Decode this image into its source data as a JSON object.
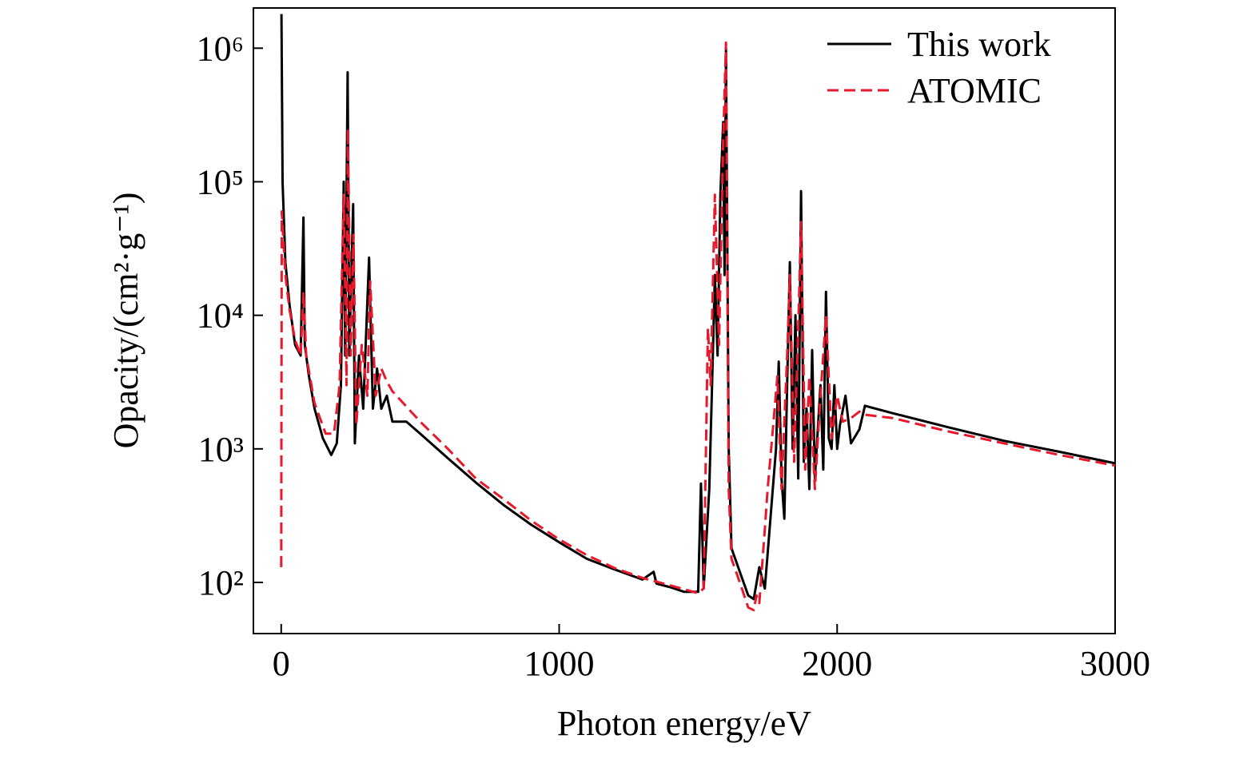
{
  "chart_data": {
    "type": "line",
    "xlabel": "Photon energy/eV",
    "ylabel": "Opacity/(cm²·g⁻¹)",
    "xlim": [
      -100,
      3000
    ],
    "xticks": [
      0,
      1000,
      2000,
      3000
    ],
    "ylim": [
      41.4,
      2000000
    ],
    "log_y": true,
    "yticks": [
      {
        "value": 100,
        "label": "10²"
      },
      {
        "value": 1000,
        "label": "10³"
      },
      {
        "value": 10000,
        "label": "10⁴"
      },
      {
        "value": 100000,
        "label": "10⁵"
      },
      {
        "value": 1000000,
        "label": "10⁶"
      }
    ],
    "legend": "upper right",
    "series": [
      {
        "name": "This work",
        "color": "#000000",
        "dashed": false,
        "x": [
          1,
          5,
          15,
          30,
          50,
          70,
          80,
          85,
          100,
          120,
          150,
          180,
          200,
          215,
          225,
          230,
          239,
          245,
          259,
          265,
          280,
          295,
          316,
          330,
          345,
          360,
          380,
          400,
          450,
          500,
          600,
          700,
          800,
          900,
          1000,
          1100,
          1200,
          1300,
          1340,
          1350,
          1400,
          1450,
          1500,
          1510,
          1520,
          1540,
          1550,
          1560,
          1570,
          1580,
          1590,
          1595,
          1600,
          1610,
          1620,
          1650,
          1680,
          1700,
          1720,
          1740,
          1760,
          1780,
          1790,
          1800,
          1810,
          1820,
          1830,
          1840,
          1850,
          1860,
          1870,
          1880,
          1890,
          1900,
          1910,
          1920,
          1940,
          1950,
          1960,
          1970,
          1980,
          1990,
          2000,
          2010,
          2030,
          2050,
          2080,
          2100,
          2200,
          2400,
          2600,
          2800,
          3000
        ],
        "values": [
          1800000,
          100000,
          25000,
          12000,
          6000,
          5000,
          54000,
          6000,
          3500,
          2000,
          1200,
          900,
          1100,
          3000,
          100000,
          5000,
          660000,
          5000,
          68000,
          1100,
          5000,
          2000,
          27000,
          2000,
          4000,
          2000,
          2500,
          1600,
          1600,
          1300,
          850,
          560,
          380,
          270,
          200,
          150,
          125,
          105,
          120,
          98,
          92,
          85,
          85,
          550,
          90,
          500,
          3000,
          20000,
          5000,
          80000,
          280000,
          20000,
          1000000,
          1000,
          180,
          120,
          80,
          75,
          130,
          90,
          300,
          1000,
          4500,
          600,
          300,
          3000,
          25000,
          1000,
          10000,
          600,
          85000,
          800,
          2000,
          500,
          5500,
          600,
          3000,
          700,
          15000,
          1200,
          1000,
          3000,
          1000,
          1500,
          2500,
          1100,
          1400,
          2100,
          1850,
          1450,
          1150,
          950,
          780
        ]
      },
      {
        "name": "ATOMIC",
        "color": "#e8192c",
        "dashed": true,
        "x": [
          0,
          2,
          15,
          30,
          50,
          70,
          80,
          90,
          120,
          160,
          190,
          210,
          225,
          235,
          240,
          250,
          260,
          270,
          290,
          310,
          320,
          340,
          360,
          380,
          400,
          500,
          600,
          700,
          800,
          900,
          1000,
          1100,
          1200,
          1300,
          1400,
          1500,
          1520,
          1535,
          1545,
          1560,
          1575,
          1590,
          1600,
          1610,
          1620,
          1650,
          1680,
          1700,
          1710,
          1720,
          1740,
          1750,
          1770,
          1785,
          1800,
          1820,
          1830,
          1845,
          1860,
          1870,
          1885,
          1900,
          1920,
          1940,
          1960,
          1980,
          2000,
          2020,
          2050,
          2080,
          2100,
          2200,
          2400,
          2600,
          2800,
          3000
        ],
        "values": [
          130,
          60000,
          20000,
          11000,
          6500,
          5000,
          15000,
          5000,
          2200,
          1300,
          1300,
          3000,
          80000,
          3000,
          250000,
          5000,
          40000,
          1500,
          6000,
          2500,
          18000,
          2500,
          4000,
          3200,
          2700,
          1600,
          1000,
          600,
          420,
          290,
          210,
          160,
          128,
          108,
          95,
          83,
          90,
          8000,
          3000,
          80000,
          6000,
          200000,
          1100000,
          500,
          150,
          100,
          65,
          62,
          80,
          70,
          250,
          500,
          1500,
          3500,
          500,
          5000,
          20000,
          800,
          8000,
          50000,
          700,
          3500,
          500,
          2500,
          10000,
          1200,
          2500,
          1600,
          1700,
          1900,
          1800,
          1700,
          1350,
          1100,
          900,
          750
        ]
      }
    ]
  }
}
